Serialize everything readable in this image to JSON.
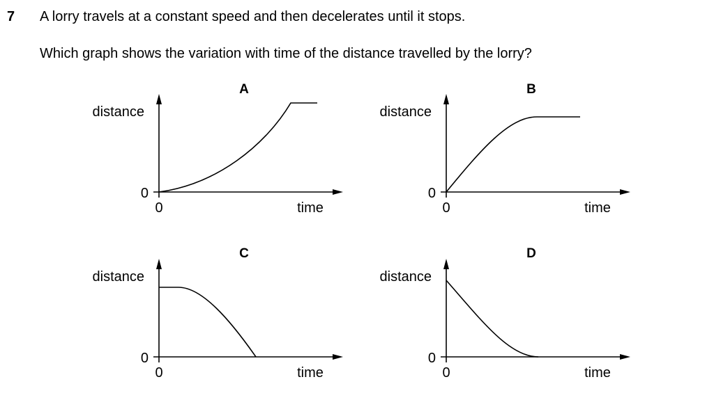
{
  "question": {
    "number": "7",
    "text": "A lorry travels at a constant speed and then decelerates until it stops.",
    "prompt": "Which graph shows the variation with time of the distance travelled by the lorry?"
  },
  "graphs": [
    {
      "letter": "A",
      "y_label": "distance",
      "x_label": "time",
      "y_origin": "0",
      "x_origin": "0"
    },
    {
      "letter": "B",
      "y_label": "distance",
      "x_label": "time",
      "y_origin": "0",
      "x_origin": "0"
    },
    {
      "letter": "C",
      "y_label": "distance",
      "x_label": "time",
      "y_origin": "0",
      "x_origin": "0"
    },
    {
      "letter": "D",
      "y_label": "distance",
      "x_label": "time",
      "y_origin": "0",
      "x_origin": "0"
    }
  ]
}
